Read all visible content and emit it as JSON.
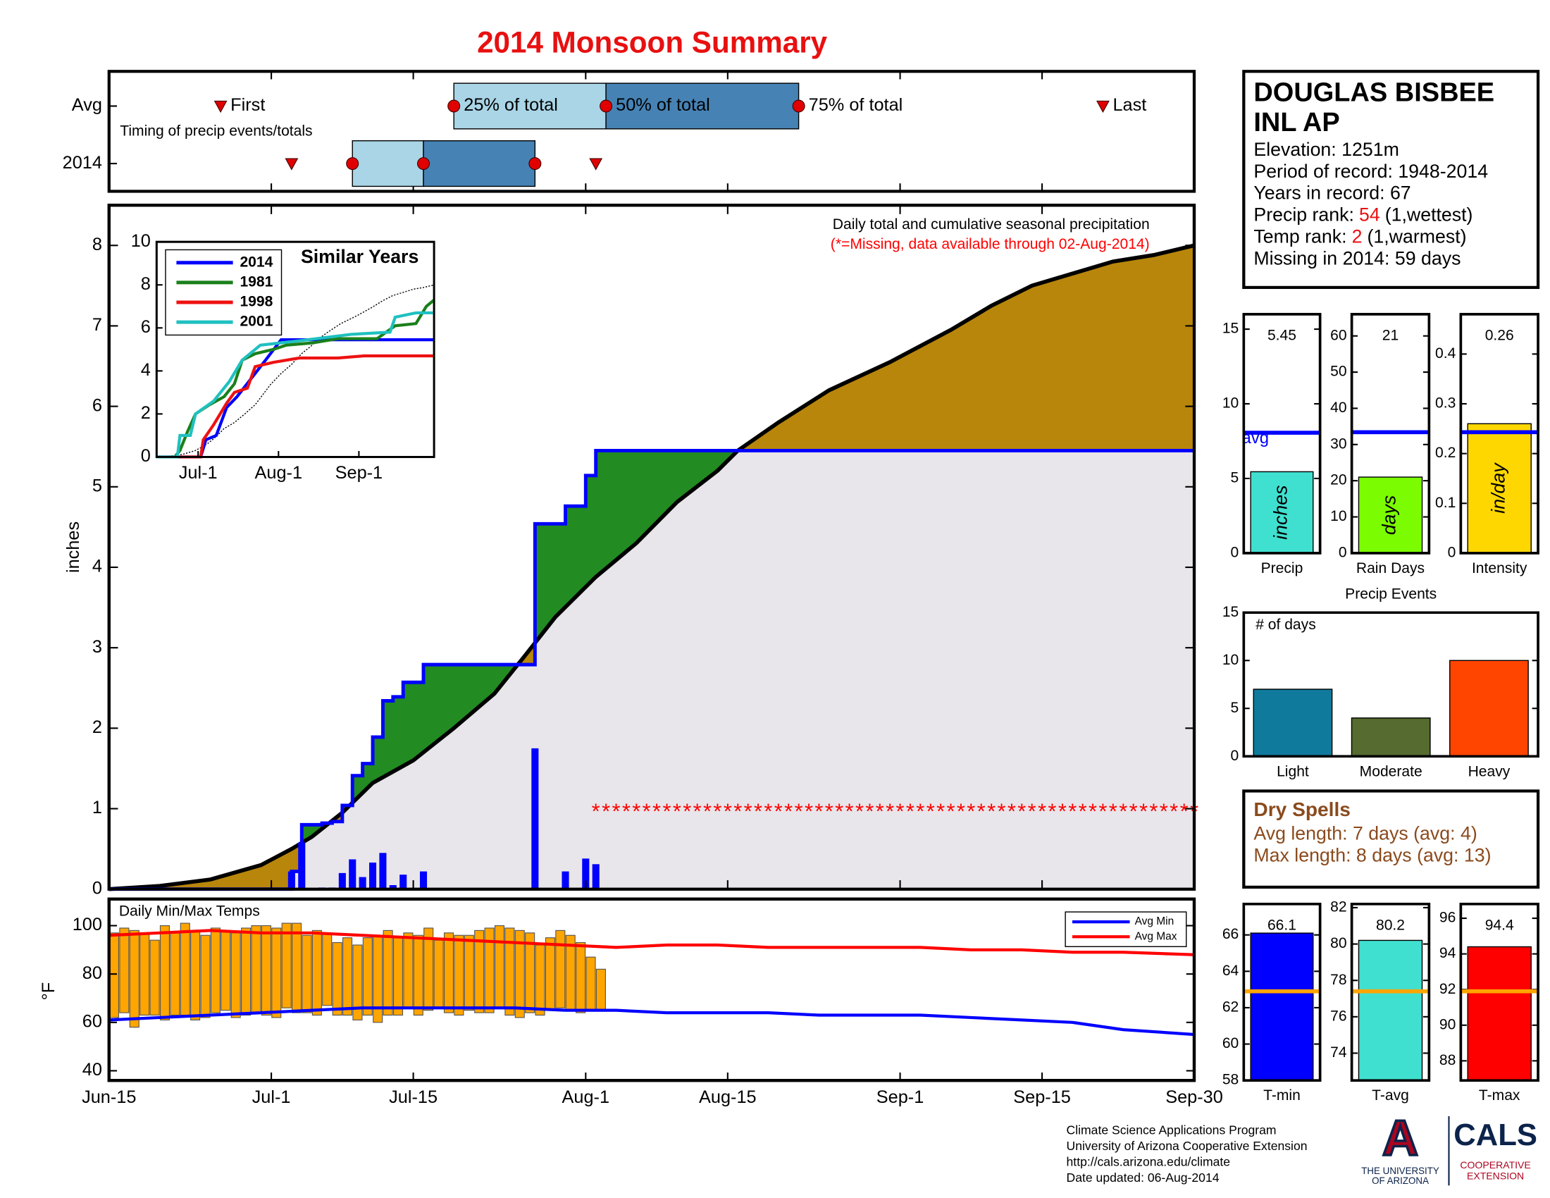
{
  "title": "2014 Monsoon Summary",
  "chart_data": [
    {
      "type": "timing",
      "caption": "Timing of precip events/totals",
      "categories": [
        "Avg",
        "2014"
      ],
      "markers": [
        "First",
        "25% of total",
        "50% of total",
        "75% of total",
        "Last"
      ],
      "values": [
        [
          11,
          34,
          49,
          68,
          98
        ],
        [
          18,
          24,
          31,
          42,
          48
        ]
      ],
      "box_colors": [
        "#a9d5e6",
        "#4682b4"
      ],
      "marker_color": "#e00000"
    },
    {
      "type": "cumulative",
      "annotation": "Daily total and cumulative seasonal precipitation",
      "note": "(*=Missing, data available through 02-Aug-2014)",
      "ylabel": "inches",
      "xlim": [
        0,
        107
      ],
      "ylim": [
        0,
        8.5
      ],
      "xticks": [
        {
          "value": 0,
          "label": "Jun-15"
        },
        {
          "value": 16,
          "label": "Jul-1"
        },
        {
          "value": 30,
          "label": "Jul-15"
        },
        {
          "value": 47,
          "label": "Aug-1"
        },
        {
          "value": 61,
          "label": "Aug-15"
        },
        {
          "value": 78,
          "label": "Sep-1"
        },
        {
          "value": 92,
          "label": "Sep-15"
        },
        {
          "value": 107,
          "label": "Sep-30"
        }
      ],
      "yticks": [
        0,
        1,
        2,
        3,
        4,
        5,
        6,
        7,
        8
      ],
      "daily": {
        "color": "#0000ff",
        "x": [
          18,
          19,
          21,
          22,
          23,
          24,
          25,
          26,
          27,
          28,
          29,
          31,
          42,
          45,
          47,
          48
        ],
        "values": [
          0.22,
          0.58,
          0.02,
          0.02,
          0.2,
          0.37,
          0.15,
          0.33,
          0.45,
          0.05,
          0.18,
          0.22,
          1.75,
          0.22,
          0.38,
          0.31
        ]
      },
      "cumulative": {
        "color": "#0000ff",
        "x": [
          0,
          18,
          18,
          19,
          19,
          21,
          21,
          22,
          22,
          23,
          23,
          24,
          24,
          25,
          25,
          26,
          26,
          27,
          27,
          28,
          28,
          29,
          29,
          31,
          31,
          42,
          42,
          45,
          45,
          47,
          47,
          48,
          48,
          107
        ],
        "values": [
          0,
          0,
          0.22,
          0.22,
          0.8,
          0.8,
          0.82,
          0.82,
          0.84,
          0.84,
          1.04,
          1.04,
          1.41,
          1.41,
          1.56,
          1.56,
          1.89,
          1.89,
          2.34,
          2.34,
          2.39,
          2.39,
          2.57,
          2.57,
          2.79,
          2.79,
          4.54,
          4.54,
          4.76,
          4.76,
          5.14,
          5.14,
          5.45,
          5.45
        ]
      },
      "average": {
        "color": "#000000",
        "x": [
          0,
          5,
          10,
          15,
          18,
          20,
          23,
          26,
          30,
          34,
          38,
          41,
          44,
          48,
          52,
          56,
          60,
          62,
          66,
          71,
          77,
          83,
          87,
          91,
          95,
          99,
          103,
          107
        ],
        "values": [
          0,
          0.04,
          0.12,
          0.3,
          0.5,
          0.65,
          0.95,
          1.32,
          1.6,
          2.0,
          2.43,
          2.9,
          3.38,
          3.88,
          4.3,
          4.81,
          5.2,
          5.45,
          5.8,
          6.2,
          6.55,
          6.95,
          7.25,
          7.5,
          7.65,
          7.8,
          7.88,
          8.0
        ]
      },
      "fill_colors": {
        "above": "#228b22",
        "below": "#b8860b",
        "base": "#e8e6ea"
      },
      "missing": {
        "marker": "*",
        "from": 48,
        "to": 107,
        "y": 1,
        "color": "#ff0000"
      }
    },
    {
      "type": "line",
      "title": "Similar Years",
      "xlim": [
        0,
        107
      ],
      "ylim": [
        0,
        10
      ],
      "xticks": [
        {
          "value": 16,
          "label": "Jul-1"
        },
        {
          "value": 47,
          "label": "Aug-1"
        },
        {
          "value": 78,
          "label": "Sep-1"
        }
      ],
      "yticks": [
        0,
        2,
        4,
        6,
        8,
        10
      ],
      "series": [
        {
          "name": "2014",
          "color": "#0000ff",
          "x": [
            0,
            17,
            19,
            23,
            27,
            31,
            42,
            48,
            107
          ],
          "values": [
            0,
            0,
            0.8,
            1.0,
            2.3,
            2.8,
            4.5,
            5.45,
            5.45
          ]
        },
        {
          "name": "1981",
          "color": "#1a801a",
          "x": [
            7,
            9,
            12,
            15,
            20,
            26,
            30,
            33,
            38,
            45,
            50,
            60,
            70,
            85,
            92,
            100,
            104,
            107
          ],
          "values": [
            0,
            0.3,
            1.2,
            2.0,
            2.4,
            2.8,
            3.4,
            4.5,
            4.8,
            5.0,
            5.2,
            5.3,
            5.5,
            5.5,
            6.1,
            6.2,
            7.0,
            7.3
          ]
        },
        {
          "name": "1998",
          "color": "#ee1111",
          "x": [
            0,
            17,
            18,
            22,
            27,
            30,
            35,
            38,
            45,
            55,
            70,
            80,
            107
          ],
          "values": [
            0,
            0,
            0.8,
            1.5,
            2.5,
            3.0,
            3.2,
            4.2,
            4.4,
            4.6,
            4.6,
            4.7,
            4.7
          ]
        },
        {
          "name": "2001",
          "color": "#20c0c0",
          "x": [
            0,
            8,
            9,
            13,
            15,
            22,
            28,
            33,
            40,
            55,
            75,
            90,
            92,
            100,
            107
          ],
          "values": [
            0,
            0,
            1.0,
            1.0,
            2.0,
            2.6,
            3.5,
            4.5,
            5.2,
            5.4,
            5.7,
            5.8,
            6.5,
            6.7,
            6.7
          ]
        }
      ]
    },
    {
      "type": "temperature",
      "title": "Daily Min/Max Temps",
      "ylabel": "°F",
      "ylim": [
        36,
        111
      ],
      "yticks": [
        40,
        60,
        80,
        100
      ],
      "bar_color": "#ffa500",
      "x": [
        0,
        1,
        2,
        3,
        4,
        5,
        6,
        7,
        8,
        9,
        10,
        11,
        12,
        13,
        14,
        15,
        16,
        17,
        18,
        19,
        20,
        21,
        22,
        23,
        24,
        25,
        26,
        27,
        28,
        29,
        30,
        31,
        32,
        33,
        34,
        35,
        36,
        37,
        38,
        39,
        40,
        41,
        42,
        43,
        44,
        45,
        46,
        47,
        48
      ],
      "min": [
        62,
        64,
        58,
        63,
        63,
        61,
        63,
        63,
        61,
        62,
        64,
        65,
        62,
        63,
        64,
        63,
        62,
        66,
        64,
        64,
        63,
        67,
        63,
        63,
        61,
        63,
        60,
        63,
        63,
        66,
        63,
        65,
        66,
        64,
        63,
        65,
        64,
        64,
        66,
        63,
        62,
        64,
        63,
        65,
        66,
        65,
        64,
        65,
        65
      ],
      "max": [
        97,
        99,
        98,
        97,
        94,
        100,
        97,
        101,
        98,
        96,
        99,
        98,
        97,
        99,
        100,
        100,
        99,
        101,
        101,
        96,
        98,
        97,
        93,
        95,
        92,
        95,
        96,
        98,
        95,
        97,
        96,
        99,
        94,
        97,
        96,
        96,
        98,
        99,
        100,
        99,
        98,
        97,
        92,
        95,
        98,
        96,
        93,
        87,
        82
      ],
      "series": [
        {
          "name": "Avg Min",
          "color": "#0000ff",
          "x": [
            0,
            5,
            10,
            15,
            20,
            25,
            30,
            35,
            40,
            45,
            50,
            55,
            60,
            65,
            70,
            75,
            80,
            85,
            90,
            95,
            100,
            107
          ],
          "values": [
            61,
            62,
            63,
            64,
            65,
            66,
            66,
            66,
            66,
            65,
            65,
            64,
            64,
            64,
            63,
            63,
            63,
            62,
            61,
            60,
            57,
            55
          ]
        },
        {
          "name": "Avg Max",
          "color": "#ff0000",
          "x": [
            0,
            5,
            10,
            15,
            20,
            25,
            30,
            35,
            40,
            45,
            50,
            55,
            60,
            65,
            70,
            75,
            80,
            85,
            90,
            95,
            100,
            107
          ],
          "values": [
            96,
            97,
            98,
            97,
            97,
            96,
            95,
            94,
            93,
            92,
            91,
            92,
            92,
            91,
            91,
            91,
            91,
            90,
            90,
            89,
            89,
            88
          ]
        }
      ]
    },
    {
      "type": "bar",
      "categories": [
        "Precip"
      ],
      "values": [
        5.45
      ],
      "unit_label": "inches",
      "color": "#40e0d0",
      "avg": 8.06,
      "avg_label": "avg",
      "avg_color": "#0000ff",
      "ylim": [
        0,
        16
      ],
      "yticks": [
        0,
        5,
        10,
        15
      ]
    },
    {
      "type": "bar",
      "categories": [
        "Rain Days"
      ],
      "values": [
        21
      ],
      "unit_label": "days",
      "color": "#7cfc00",
      "avg": 33.4,
      "avg_color": "#0000ff",
      "ylim": [
        0,
        66
      ],
      "yticks": [
        0,
        10,
        20,
        30,
        40,
        50,
        60
      ]
    },
    {
      "type": "bar",
      "categories": [
        "Intensity"
      ],
      "values": [
        0.26
      ],
      "unit_label": "in/day",
      "color": "#ffd700",
      "avg": 0.243,
      "avg_color": "#0000ff",
      "ylim": [
        0,
        0.48
      ],
      "yticks": [
        0,
        0.1,
        0.2,
        0.3,
        0.4
      ]
    },
    {
      "type": "bar",
      "title": "Precip Events",
      "annotation": "# of days",
      "categories": [
        "Light",
        "Moderate",
        "Heavy"
      ],
      "values": [
        7,
        4,
        10
      ],
      "colors": [
        "#0f7a9c",
        "#556b2f",
        "#ff4500"
      ],
      "ylim": [
        0,
        15
      ],
      "yticks": [
        0,
        5,
        10,
        15
      ]
    },
    {
      "type": "bar",
      "categories": [
        "T-min"
      ],
      "values": [
        66.1
      ],
      "color": "#0000ff",
      "avg": 62.9,
      "avg_color": "#ffa500",
      "ylim": [
        58,
        67.7
      ],
      "yticks": [
        58,
        60,
        62,
        64,
        66
      ]
    },
    {
      "type": "bar",
      "categories": [
        "T-avg"
      ],
      "values": [
        80.2
      ],
      "color": "#40e0d0",
      "avg": 77.4,
      "avg_color": "#ffa500",
      "ylim": [
        72.5,
        82.2
      ],
      "yticks": [
        74,
        76,
        78,
        80,
        82
      ]
    },
    {
      "type": "bar",
      "categories": [
        "T-max"
      ],
      "values": [
        94.4
      ],
      "color": "#ff0000",
      "avg": 91.9,
      "avg_color": "#ffa500",
      "ylim": [
        86.9,
        96.8
      ],
      "yticks": [
        88,
        90,
        92,
        94,
        96
      ]
    }
  ],
  "station": {
    "name_lines": [
      "DOUGLAS BISBEE",
      "INL AP"
    ],
    "lines": [
      "Elevation: 1251m",
      "Period of record: 1948-2014",
      "Years in record: 67"
    ],
    "ranks": [
      {
        "label": "Precip rank:",
        "value": 54,
        "note": "(1,wettest)"
      },
      {
        "label": "Temp rank:",
        "value": 2,
        "note": "(1,warmest)"
      }
    ],
    "missing": "Missing in 2014: 59 days"
  },
  "dry_spells": {
    "title": "Dry Spells",
    "lines": [
      "Avg length: 7 days (avg: 4)",
      "Max length: 8 days (avg: 13)"
    ]
  },
  "footer": {
    "lines": [
      "Climate Science Applications Program",
      "University of Arizona Cooperative Extension",
      "http://cals.arizona.edu/climate",
      "Date updated: 06-Aug-2014"
    ],
    "logo_letter": "A",
    "university": [
      "THE UNIVERSITY",
      "OF ARIZONA"
    ],
    "cals": "CALS",
    "extension": [
      "COOPERATIVE",
      "EXTENSION"
    ]
  }
}
